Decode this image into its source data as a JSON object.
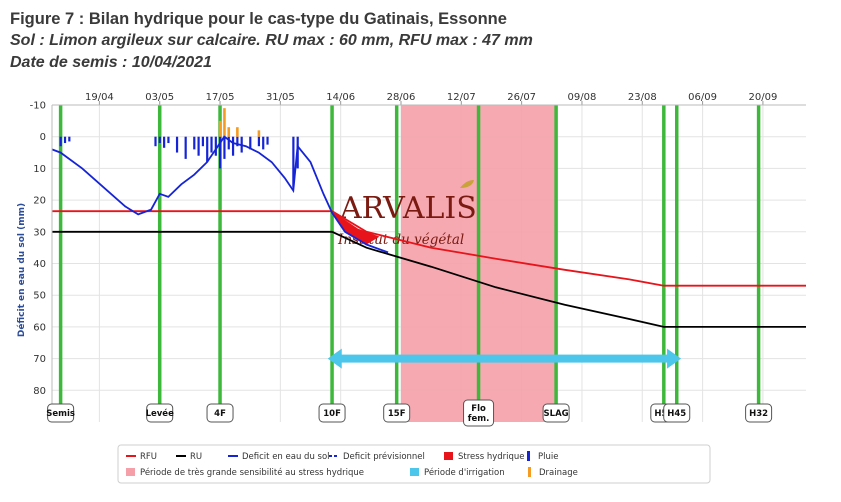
{
  "title_line1": "Figure 7 : Bilan hydrique pour le cas-type du Gatinais, Essonne",
  "title_line2": "Sol : Limon argileux sur calcaire. RU max : 60 mm, RFU max : 47 mm",
  "title_line3": "Date de semis : 10/04/2021",
  "watermark": {
    "brand": "ARVALIS",
    "tagline": "Institut du végétal"
  },
  "colors": {
    "rfu": "#e8141b",
    "ru": "#000000",
    "deficit": "#1524d6",
    "stress": "#e8141b",
    "pluie": "#1524d6",
    "sensibilite": "#f5a0a8",
    "irrigation": "#4cc6ea",
    "drainage": "#f59a22",
    "stage": "#3db83a"
  },
  "chart_data": {
    "type": "line",
    "ylabel": "Déficit en eau du sol (mm)",
    "ylim": [
      -10,
      90
    ],
    "y_inverted": true,
    "y_ticks": [
      -10,
      0,
      10,
      20,
      30,
      40,
      50,
      60,
      70,
      80
    ],
    "x_date_ticks": [
      "19/04",
      "03/05",
      "17/05",
      "31/05",
      "14/06",
      "28/06",
      "12/07",
      "26/07",
      "09/08",
      "23/08",
      "06/09",
      "20/09"
    ],
    "x_range": [
      "2021-04-08",
      "2021-09-30"
    ],
    "grid": true,
    "stages": [
      {
        "label": "Semis",
        "date": "2021-04-10"
      },
      {
        "label": "Levée",
        "date": "2021-05-03"
      },
      {
        "label": "4F",
        "date": "2021-05-17"
      },
      {
        "label": "10F",
        "date": "2021-06-12"
      },
      {
        "label": "15F",
        "date": "2021-06-27"
      },
      {
        "label": "Flo fem.",
        "date": "2021-07-16"
      },
      {
        "label": "SLAG",
        "date": "2021-08-03"
      },
      {
        "label": "H50",
        "date": "2021-08-28"
      },
      {
        "label": "H45",
        "date": "2021-08-31"
      },
      {
        "label": "H32",
        "date": "2021-09-19"
      }
    ],
    "sensitivity_period": {
      "start": "2021-06-28",
      "end": "2021-08-03"
    },
    "irrigation_period": {
      "start": "2021-06-11",
      "end": "2021-09-01",
      "y": 70
    },
    "series": [
      {
        "name": "RFU",
        "points": [
          [
            "2021-04-08",
            23.5
          ],
          [
            "2021-06-12",
            23.5
          ],
          [
            "2021-06-20",
            30
          ],
          [
            "2021-07-05",
            35
          ],
          [
            "2021-07-20",
            38.5
          ],
          [
            "2021-08-05",
            42
          ],
          [
            "2021-08-20",
            45
          ],
          [
            "2021-08-28",
            47
          ],
          [
            "2021-09-30",
            47
          ]
        ]
      },
      {
        "name": "RU",
        "points": [
          [
            "2021-04-08",
            30
          ],
          [
            "2021-06-12",
            30
          ],
          [
            "2021-06-20",
            35
          ],
          [
            "2021-07-05",
            41
          ],
          [
            "2021-07-20",
            47.5
          ],
          [
            "2021-08-05",
            53
          ],
          [
            "2021-08-20",
            57.5
          ],
          [
            "2021-08-28",
            60
          ],
          [
            "2021-09-30",
            60
          ]
        ]
      },
      {
        "name": "Deficit en eau du sol",
        "points": [
          [
            "2021-04-08",
            4
          ],
          [
            "2021-04-10",
            5
          ],
          [
            "2021-04-15",
            10
          ],
          [
            "2021-04-20",
            16
          ],
          [
            "2021-04-25",
            22
          ],
          [
            "2021-04-28",
            24.5
          ],
          [
            "2021-05-01",
            23
          ],
          [
            "2021-05-03",
            18
          ],
          [
            "2021-05-05",
            19
          ],
          [
            "2021-05-08",
            15
          ],
          [
            "2021-05-11",
            12
          ],
          [
            "2021-05-14",
            8
          ],
          [
            "2021-05-16",
            4
          ],
          [
            "2021-05-18",
            0
          ],
          [
            "2021-05-20",
            2
          ],
          [
            "2021-05-23",
            3
          ],
          [
            "2021-05-26",
            5
          ],
          [
            "2021-05-29",
            8
          ],
          [
            "2021-06-01",
            13
          ],
          [
            "2021-06-03",
            17
          ],
          [
            "2021-06-04",
            3
          ],
          [
            "2021-06-07",
            8
          ],
          [
            "2021-06-10",
            18
          ],
          [
            "2021-06-12",
            24
          ],
          [
            "2021-06-15",
            30
          ],
          [
            "2021-06-20",
            34
          ],
          [
            "2021-06-25",
            36.5
          ]
        ]
      },
      {
        "name": "Deficit prévisionnel",
        "points": []
      },
      {
        "name": "Stress hydrique",
        "points": [
          [
            "2021-06-12",
            23.5
          ],
          [
            "2021-06-18",
            29
          ],
          [
            "2021-06-23",
            31.5
          ],
          [
            "2021-06-20",
            34
          ],
          [
            "2021-06-15",
            30
          ]
        ]
      },
      {
        "name": "Pluie",
        "values": [
          [
            "2021-04-10",
            3
          ],
          [
            "2021-04-11",
            2
          ],
          [
            "2021-04-12",
            1.5
          ],
          [
            "2021-05-02",
            3
          ],
          [
            "2021-05-03",
            2
          ],
          [
            "2021-05-04",
            3.5
          ],
          [
            "2021-05-05",
            2
          ],
          [
            "2021-05-07",
            5
          ],
          [
            "2021-05-09",
            7
          ],
          [
            "2021-05-11",
            4
          ],
          [
            "2021-05-12",
            6
          ],
          [
            "2021-05-13",
            3
          ],
          [
            "2021-05-14",
            8
          ],
          [
            "2021-05-15",
            5
          ],
          [
            "2021-05-16",
            6
          ],
          [
            "2021-05-17",
            10
          ],
          [
            "2021-05-18",
            7
          ],
          [
            "2021-05-19",
            4
          ],
          [
            "2021-05-20",
            6
          ],
          [
            "2021-05-21",
            3
          ],
          [
            "2021-05-22",
            5
          ],
          [
            "2021-05-24",
            4
          ],
          [
            "2021-05-26",
            3
          ],
          [
            "2021-05-27",
            4
          ],
          [
            "2021-05-28",
            2.5
          ],
          [
            "2021-06-03",
            16
          ],
          [
            "2021-06-04",
            10
          ]
        ]
      },
      {
        "name": "Drainage",
        "values": [
          [
            "2021-05-17",
            5
          ],
          [
            "2021-05-18",
            9
          ],
          [
            "2021-05-19",
            3
          ],
          [
            "2021-05-21",
            3
          ],
          [
            "2021-05-26",
            2
          ]
        ]
      }
    ]
  },
  "legend": {
    "row1": [
      "RFU",
      "RU",
      "Deficit en eau du sol",
      "Deficit prévisionnel",
      "Stress hydrique",
      "Pluie"
    ],
    "row2": [
      "Période de très grande sensibilité au stress hydrique",
      "Période d'irrigation",
      "Drainage"
    ]
  }
}
